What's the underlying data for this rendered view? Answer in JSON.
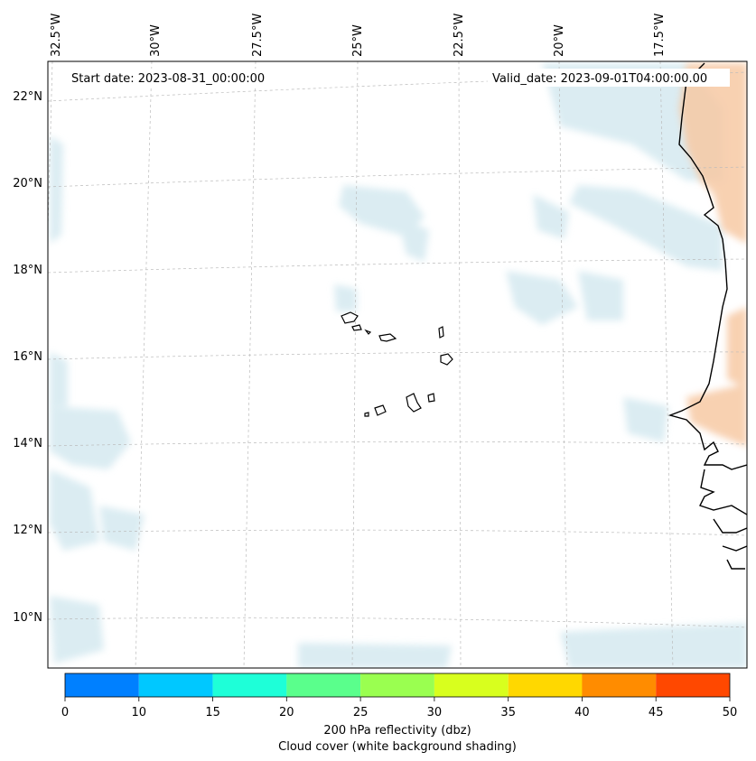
{
  "map": {
    "start_label": "Start date: 2023-08-31_00:00:00",
    "valid_label": "Valid_date: 2023-09-01T04:00:00.00",
    "lon_ticks": [
      "32.5°W",
      "30°W",
      "27.5°W",
      "25°W",
      "22.5°W",
      "20°W",
      "17.5°W"
    ],
    "lat_ticks": [
      "22°N",
      "20°N",
      "18°N",
      "16°N",
      "14°N",
      "12°N",
      "10°N"
    ],
    "coastline_color": "#000000",
    "cloud_color": "#cfe6ee",
    "reflectivity_shade_color": "#f7c9a4"
  },
  "colorbar": {
    "label_line1": "200 hPa reflectivity (dbz)",
    "label_line2": "Cloud cover (white background shading)",
    "ticks": [
      "0",
      "10",
      "15",
      "20",
      "25",
      "30",
      "35",
      "40",
      "45",
      "50"
    ],
    "colors": [
      "#0080ff",
      "#00c8ff",
      "#1effd8",
      "#5aff8c",
      "#9aff50",
      "#d8ff1e",
      "#ffd800",
      "#ff8c00",
      "#ff4800"
    ]
  }
}
